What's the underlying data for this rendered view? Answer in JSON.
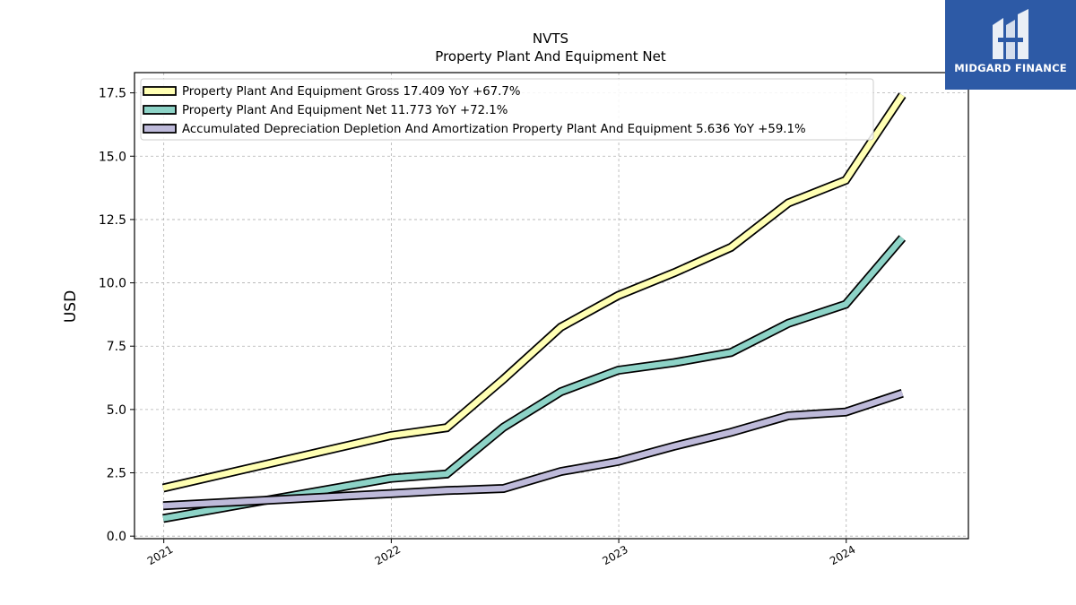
{
  "chart_data": {
    "type": "line",
    "title": "NVTS",
    "subtitle": "Property Plant And Equipment Net",
    "xlabel": "",
    "ylabel": "USD",
    "xlim": [
      "2020-11-15",
      "2024-07-15"
    ],
    "ylim": [
      -0.1,
      18.3
    ],
    "x_ticks": [
      "2021",
      "2022",
      "2023",
      "2024"
    ],
    "y_ticks": [
      "0.0",
      "2.5",
      "5.0",
      "7.5",
      "10.0",
      "12.5",
      "15.0",
      "17.5"
    ],
    "grid": true,
    "legend_position": "top-left",
    "x": [
      "2020-12-31",
      "2021-12-31",
      "2022-03-31",
      "2022-06-30",
      "2022-09-30",
      "2022-12-31",
      "2023-03-31",
      "2023-06-30",
      "2023-09-30",
      "2023-12-31",
      "2024-03-31"
    ],
    "series": [
      {
        "name": "Property Plant And Equipment Gross  17.409 YoY +67.7%",
        "color": "#ffffb3",
        "values": [
          1.9,
          3.97,
          4.28,
          6.2,
          8.25,
          9.5,
          10.4,
          11.4,
          13.15,
          14.05,
          17.41
        ]
      },
      {
        "name": "Property Plant And Equipment Net  11.773 YoY +72.1%",
        "color": "#8dd3c7",
        "values": [
          0.7,
          2.28,
          2.45,
          4.3,
          5.7,
          6.55,
          6.85,
          7.25,
          8.4,
          9.15,
          11.77
        ]
      },
      {
        "name": "Accumulated Depreciation Depletion And Amortization Property Plant And Equipment  5.636 YoY +59.1%",
        "color": "#bebada",
        "values": [
          1.2,
          1.68,
          1.8,
          1.88,
          2.55,
          2.95,
          3.55,
          4.1,
          4.75,
          4.9,
          5.64
        ]
      }
    ]
  },
  "watermark": {
    "text": "MIDGARD FINANCE",
    "background": "#2d5aa6"
  }
}
